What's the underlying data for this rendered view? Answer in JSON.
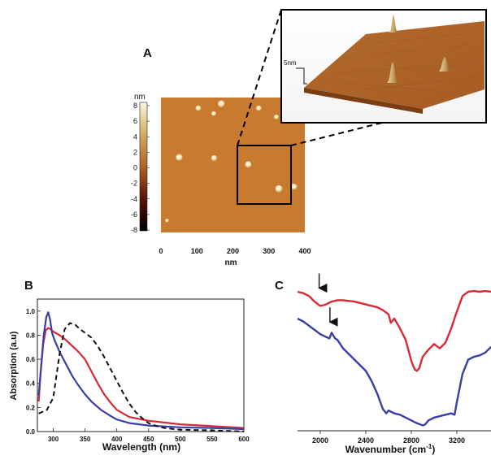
{
  "panels": {
    "a": {
      "label": "A",
      "colorbar": {
        "unit": "nm",
        "ticks": [
          "8",
          "6",
          "4",
          "2",
          "0",
          "-2",
          "-4",
          "-6",
          "-8"
        ],
        "range": [
          -8,
          8
        ]
      },
      "afm_image": {
        "x_ticks": [
          "0",
          "100",
          "200",
          "300",
          "400"
        ],
        "x_label": "nm",
        "x_range": [
          0,
          400
        ],
        "base_color": "#c87a2e",
        "particles": [
          {
            "x": 168,
            "y": 381,
            "h": 6.5
          },
          {
            "x": 104,
            "y": 368,
            "h": 4.5
          },
          {
            "x": 147,
            "y": 352,
            "h": 3.5
          },
          {
            "x": 272,
            "y": 368,
            "h": 4.5
          },
          {
            "x": 321,
            "y": 342,
            "h": 3.5
          },
          {
            "x": 51,
            "y": 222,
            "h": 6.5
          },
          {
            "x": 148,
            "y": 220,
            "h": 5.0
          },
          {
            "x": 243,
            "y": 201,
            "h": 6.0
          },
          {
            "x": 328,
            "y": 129,
            "h": 7.0
          },
          {
            "x": 370,
            "y": 135,
            "h": 5.5
          },
          {
            "x": 17,
            "y": 35,
            "h": 2.0
          }
        ]
      },
      "inset": {
        "scale_label": "5nm"
      }
    },
    "b": {
      "label": "B",
      "chart_data": {
        "type": "line",
        "xlabel": "Wavelength (nm)",
        "ylabel": "Absorption (a.u)",
        "xlim": [
          275,
          600
        ],
        "ylim": [
          0,
          1.1
        ],
        "x_ticks": [
          "300",
          "350",
          "400",
          "450",
          "500",
          "550",
          "600"
        ],
        "y_ticks": [
          "0.0",
          "0.2",
          "0.4",
          "0.6",
          "0.8",
          "1.0"
        ],
        "series": [
          {
            "color": "#d62a36",
            "style": "solid",
            "x": [
              277,
              280,
              284,
              288,
              292,
              296,
              300,
              310,
              320,
              330,
              340,
              350,
              360,
              370,
              380,
              390,
              400,
              420,
              450,
              500,
              550,
              600
            ],
            "y": [
              0.25,
              0.48,
              0.72,
              0.84,
              0.86,
              0.85,
              0.83,
              0.8,
              0.76,
              0.71,
              0.66,
              0.6,
              0.5,
              0.4,
              0.31,
              0.24,
              0.18,
              0.12,
              0.09,
              0.06,
              0.045,
              0.03
            ]
          },
          {
            "color": "#3a3fa8",
            "style": "solid",
            "x": [
              277,
              281,
              285,
              289,
              292,
              295,
              298,
              302,
              310,
              320,
              330,
              340,
              350,
              360,
              375,
              390,
              400,
              420,
              450,
              500,
              550,
              600
            ],
            "y": [
              0.3,
              0.55,
              0.8,
              0.95,
              0.99,
              0.93,
              0.82,
              0.76,
              0.66,
              0.56,
              0.46,
              0.38,
              0.31,
              0.25,
              0.18,
              0.13,
              0.1,
              0.07,
              0.05,
              0.035,
              0.03,
              0.02
            ]
          },
          {
            "color": "#111111",
            "style": "dashed",
            "x": [
              277,
              290,
              300,
              310,
              318,
              326,
              334,
              342,
              350,
              360,
              370,
              380,
              390,
              400,
              410,
              420,
              430,
              440,
              450,
              460,
              475,
              500,
              550,
              600
            ],
            "y": [
              0.15,
              0.18,
              0.28,
              0.65,
              0.85,
              0.9,
              0.89,
              0.85,
              0.82,
              0.78,
              0.71,
              0.62,
              0.52,
              0.42,
              0.32,
              0.23,
              0.16,
              0.11,
              0.07,
              0.05,
              0.03,
              0.015,
              0.01,
              0.0
            ]
          }
        ]
      }
    },
    "c": {
      "label": "C",
      "chart_data": {
        "type": "line",
        "xlabel": "Wavenumber (cm",
        "xlabel_sup": "-1",
        "xlabel_close": ")",
        "xlim": [
          1800,
          3500
        ],
        "ylim": [
          0,
          1
        ],
        "x_ticks": [
          "2000",
          "2400",
          "2800",
          "3200"
        ],
        "arrows": [
          {
            "x": 1990,
            "y": 0.94
          },
          {
            "x": 2085,
            "y": 0.7
          }
        ],
        "series": [
          {
            "color": "#d62a36",
            "x": [
              1800,
              1850,
              1900,
              1950,
              2000,
              2050,
              2100,
              2150,
              2200,
              2300,
              2400,
              2500,
              2550,
              2600,
              2620,
              2650,
              2680,
              2700,
              2750,
              2800,
              2830,
              2850,
              2870,
              2900,
              2950,
              3000,
              3050,
              3100,
              3150,
              3200,
              3250,
              3300,
              3350,
              3400,
              3450,
              3500
            ],
            "y": [
              0.96,
              0.95,
              0.93,
              0.89,
              0.86,
              0.87,
              0.89,
              0.9,
              0.9,
              0.89,
              0.87,
              0.85,
              0.83,
              0.8,
              0.74,
              0.77,
              0.73,
              0.7,
              0.62,
              0.47,
              0.41,
              0.4,
              0.42,
              0.5,
              0.55,
              0.59,
              0.56,
              0.6,
              0.7,
              0.82,
              0.93,
              0.96,
              0.965,
              0.96,
              0.965,
              0.96
            ]
          },
          {
            "color": "#3a3fa8",
            "x": [
              1800,
              1850,
              1900,
              1950,
              2000,
              2050,
              2080,
              2100,
              2130,
              2150,
              2200,
              2300,
              2400,
              2450,
              2500,
              2550,
              2580,
              2600,
              2650,
              2700,
              2750,
              2800,
              2850,
              2900,
              2920,
              2950,
              3000,
              3050,
              3100,
              3150,
              3180,
              3200,
              3250,
              3300,
              3350,
              3400,
              3450,
              3500
            ],
            "y": [
              0.77,
              0.75,
              0.72,
              0.69,
              0.66,
              0.64,
              0.63,
              0.67,
              0.63,
              0.62,
              0.56,
              0.48,
              0.4,
              0.33,
              0.24,
              0.13,
              0.1,
              0.12,
              0.1,
              0.09,
              0.07,
              0.05,
              0.03,
              0.015,
              0.02,
              0.05,
              0.07,
              0.08,
              0.09,
              0.1,
              0.09,
              0.18,
              0.38,
              0.48,
              0.5,
              0.51,
              0.53,
              0.57
            ]
          }
        ]
      }
    }
  }
}
